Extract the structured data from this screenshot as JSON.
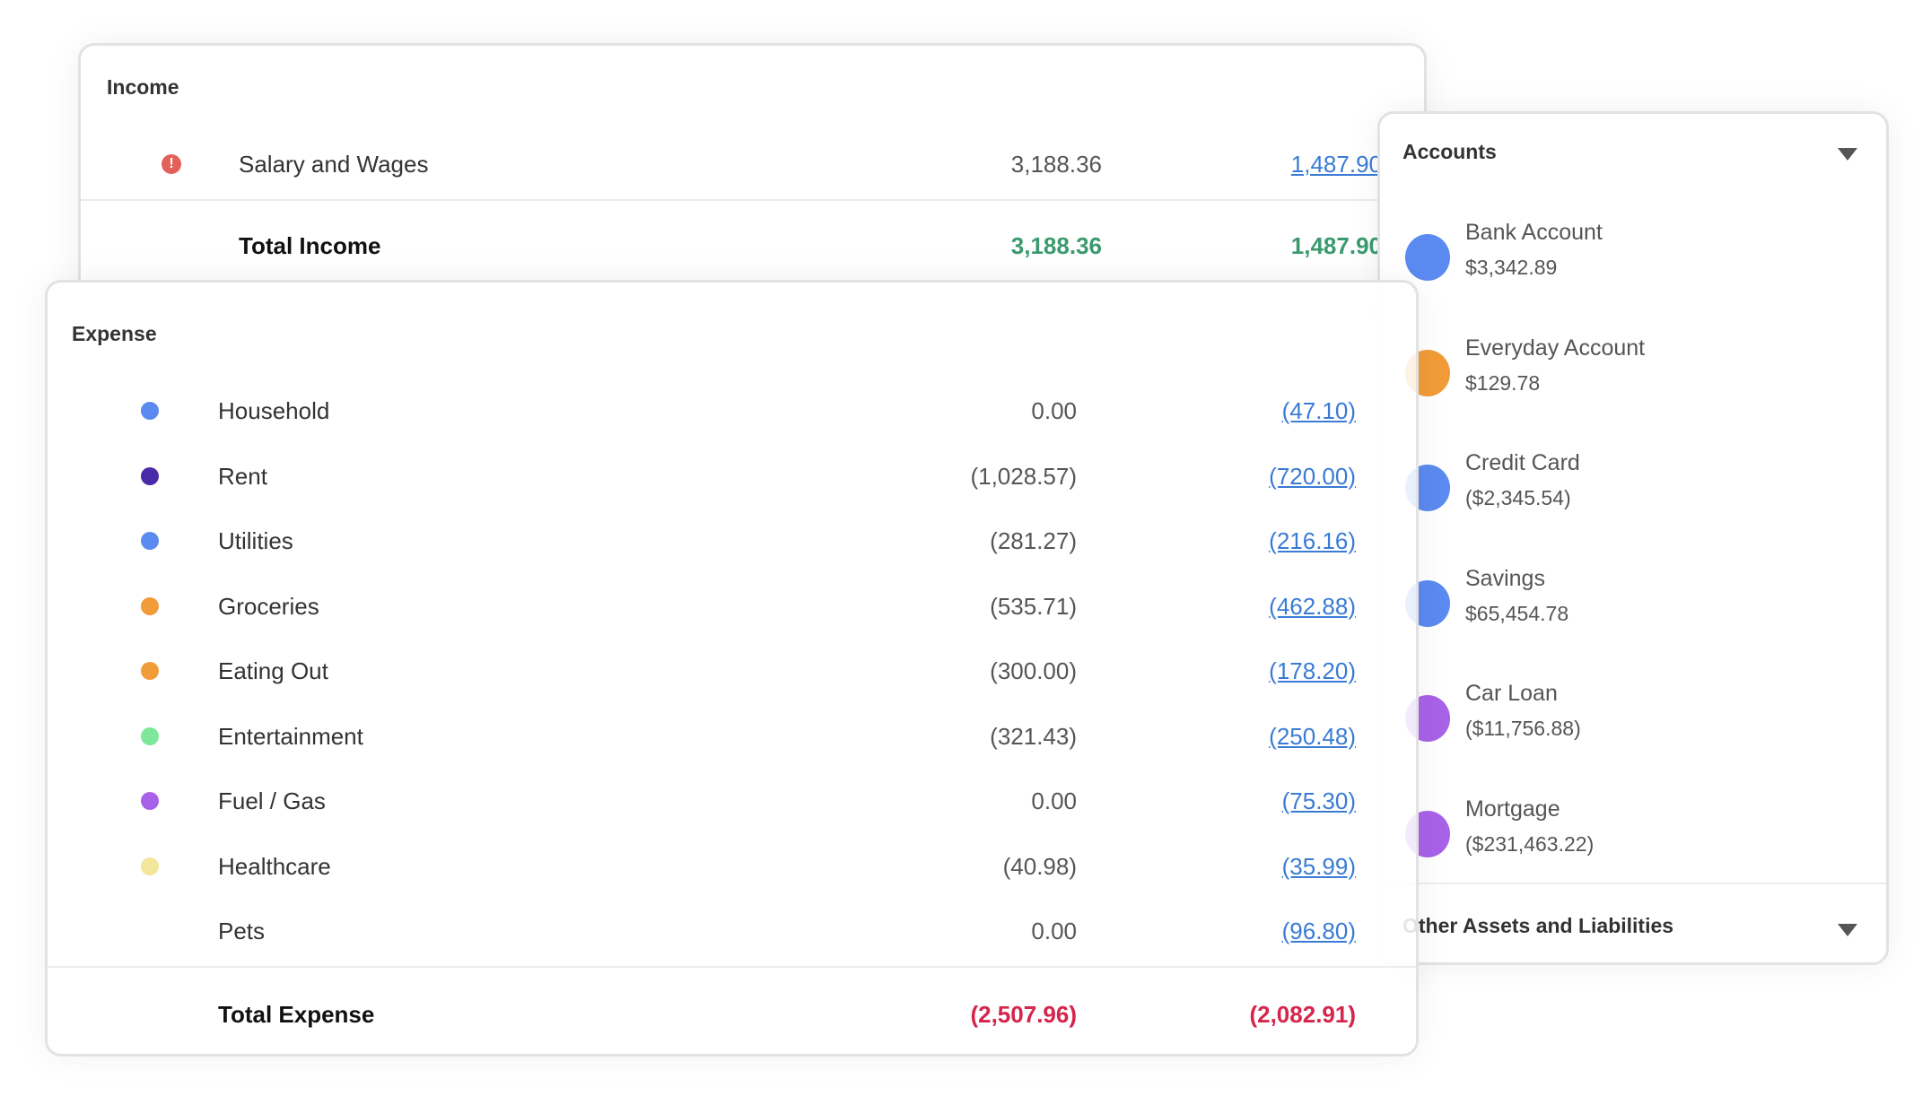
{
  "income": {
    "title": "Income",
    "rows": [
      {
        "label": "Salary and Wages",
        "value1": "3,188.36",
        "value2": "1,487.90",
        "icon": "alert-icon",
        "icon_color": "#e4605a"
      }
    ],
    "total": {
      "label": "Total Income",
      "value1": "3,188.36",
      "value2": "1,487.90"
    }
  },
  "expense": {
    "title": "Expense",
    "rows": [
      {
        "label": "Household",
        "value1": "0.00",
        "value2": "(47.10)",
        "color": "#5b8af0"
      },
      {
        "label": "Rent",
        "value1": "(1,028.57)",
        "value2": "(720.00)",
        "color": "#4b2aa8"
      },
      {
        "label": "Utilities",
        "value1": "(281.27)",
        "value2": "(216.16)",
        "color": "#5b8af0"
      },
      {
        "label": "Groceries",
        "value1": "(535.71)",
        "value2": "(462.88)",
        "color": "#f19c38"
      },
      {
        "label": "Eating Out",
        "value1": "(300.00)",
        "value2": "(178.20)",
        "color": "#f19c38"
      },
      {
        "label": "Entertainment",
        "value1": "(321.43)",
        "value2": "(250.48)",
        "color": "#7de89a"
      },
      {
        "label": "Fuel / Gas",
        "value1": "0.00",
        "value2": "(75.30)",
        "color": "#a862e8"
      },
      {
        "label": "Healthcare",
        "value1": "(40.98)",
        "value2": "(35.99)",
        "color": "#f3e69a"
      },
      {
        "label": "Pets",
        "value1": "0.00",
        "value2": "(96.80)",
        "color": ""
      }
    ],
    "total": {
      "label": "Total Expense",
      "value1": "(2,507.96)",
      "value2": "(2,082.91)"
    }
  },
  "accounts": {
    "title": "Accounts",
    "items": [
      {
        "name": "Bank Account",
        "amount": "$3,342.89",
        "color": "#5b8af0"
      },
      {
        "name": "Everyday Account",
        "amount": "$129.78",
        "color": "#f19c38"
      },
      {
        "name": "Credit Card",
        "amount": "($2,345.54)",
        "color": "#5b8af0"
      },
      {
        "name": "Savings",
        "amount": "$65,454.78",
        "color": "#5b8af0"
      },
      {
        "name": "Car Loan",
        "amount": "($11,756.88)",
        "color": "#a862e8"
      },
      {
        "name": "Mortgage",
        "amount": "($231,463.22)",
        "color": "#a862e8"
      }
    ],
    "other_title": "Other Assets and Liabilities"
  }
}
